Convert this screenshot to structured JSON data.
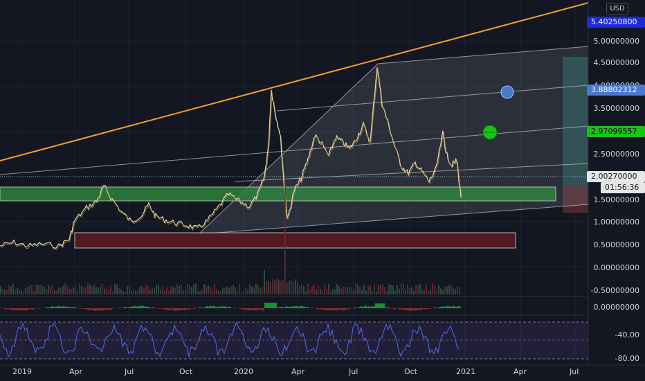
{
  "currency_button": "USD",
  "price_axis": {
    "labels": [
      "5.00000000",
      "4.50000000",
      "4.00000000",
      "3.50000000",
      "2.50000000",
      "1.50000000",
      "1.00000000",
      "0.50000000",
      "0.00000000",
      "-0.50000000"
    ]
  },
  "price_tags": {
    "top": "5.40250800",
    "blue": "3.88802312",
    "green": "2.97099557",
    "last": "2.00270000",
    "countdown": "01:56:36"
  },
  "indicator_axis": {
    "macd_zero": "0.00000000",
    "rsi_minus40": "-40.00",
    "rsi_minus80": "-80.00"
  },
  "time_axis": [
    "2019",
    "Apr",
    "Jul",
    "Oct",
    "2020",
    "Apr",
    "Jul",
    "Oct",
    "2021",
    "Apr",
    "Jul"
  ],
  "colors": {
    "background": "#131722",
    "candle_line": "#e8d9b0",
    "trendline": "#f0a030",
    "support_zone": "#2e8b3e",
    "demand_zone": "#5a1a24",
    "rsi_line": "#4a6ad8",
    "blue_tag": "#3a78d8",
    "green_tag": "#10c010"
  }
}
